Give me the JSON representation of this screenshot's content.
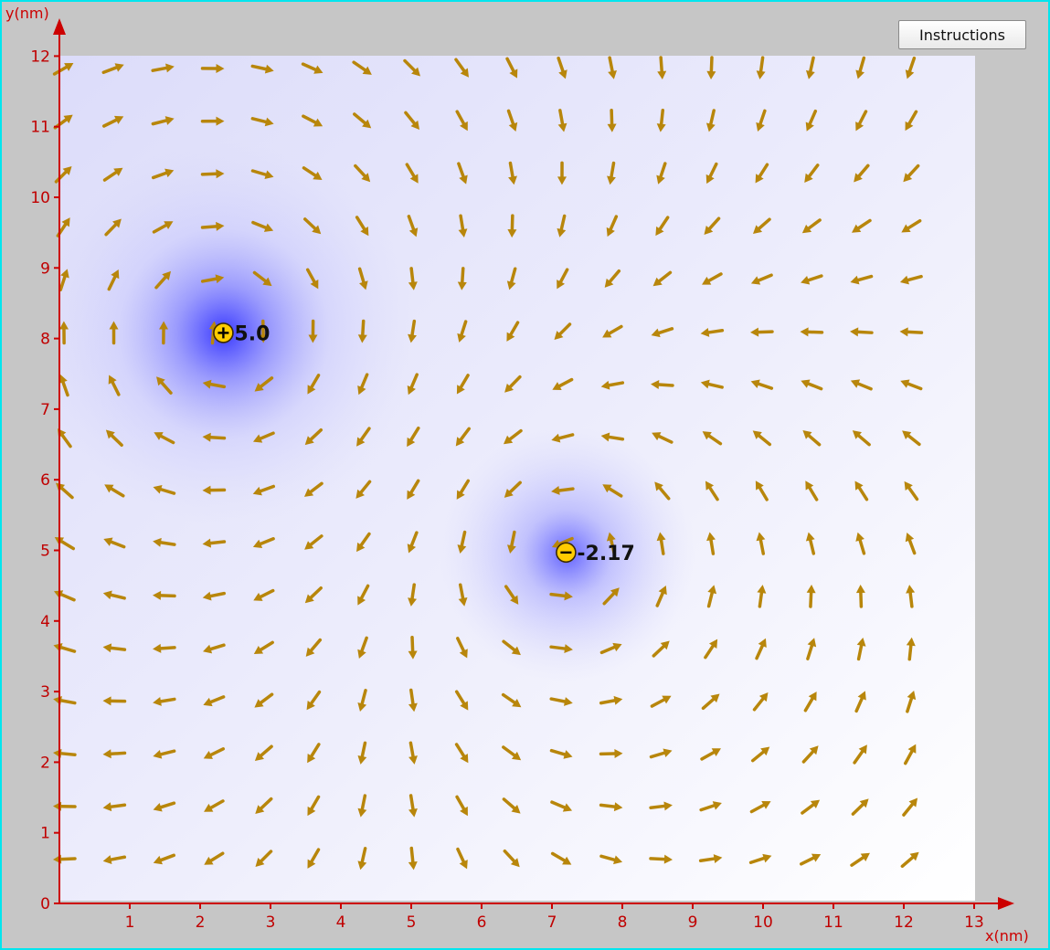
{
  "toolbar": {
    "instructions_label": "Instructions"
  },
  "axes": {
    "x_label": "x(nm)",
    "y_label": "y(nm)",
    "x_ticks": [
      "0",
      "1",
      "2",
      "3",
      "4",
      "5",
      "6",
      "7",
      "8",
      "9",
      "10",
      "11",
      "12",
      "13"
    ],
    "y_ticks": [
      "0",
      "1",
      "2",
      "3",
      "4",
      "5",
      "6",
      "7",
      "8",
      "9",
      "10",
      "11",
      "12"
    ],
    "x_range": [
      0,
      13
    ],
    "y_range": [
      0,
      12
    ]
  },
  "charges": [
    {
      "name": "positive",
      "sign": "+",
      "label": "5.0",
      "x": 2.33,
      "y": 8.08
    },
    {
      "name": "negative",
      "sign": "−",
      "label": "-2.17",
      "x": 7.2,
      "y": 4.97
    }
  ],
  "colors": {
    "frame": "#00e5ee",
    "background": "#c6c6c6",
    "axis": "#cc0000",
    "tick_label": "#c00000",
    "arrow": "#b8860b",
    "potential": "#3a3aff",
    "charge_fill": "#ffcc00"
  }
}
